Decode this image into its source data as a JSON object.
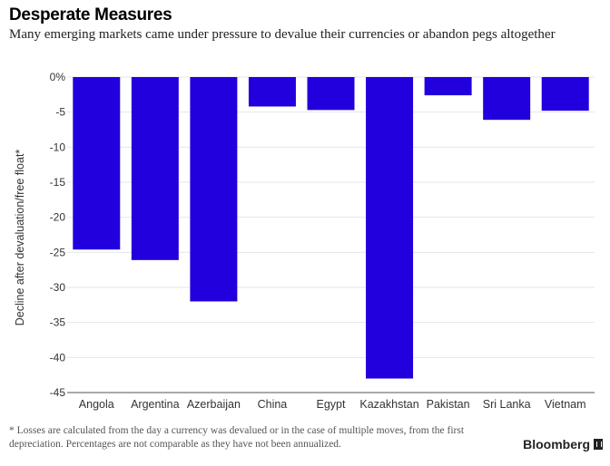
{
  "header": {
    "title": "Desperate Measures",
    "subtitle": "Many emerging markets came under pressure to devalue their currencies or abandon pegs altogether"
  },
  "footnote": "* Losses are calculated from the day a currency was devalued or in the case of multiple moves, from the first depreciation. Percentages are not comparable as they have not been annualized.",
  "brand": {
    "name": "Bloomberg",
    "icon": "bloomberg-logo-icon"
  },
  "colors": {
    "bar": "#2200dd",
    "grid": "#e6e6e6",
    "axis": "#555555"
  },
  "chart_data": {
    "type": "bar",
    "title": "Desperate Measures",
    "subtitle": "Many emerging markets came under pressure to devalue their currencies or abandon pegs altogether",
    "xlabel": "",
    "ylabel": "Decline after devaluation/free float*",
    "categories": [
      "Angola",
      "Argentina",
      "Azerbaijan",
      "China",
      "Egypt",
      "Kazakhstan",
      "Pakistan",
      "Sri Lanka",
      "Vietnam"
    ],
    "values": [
      -24.6,
      -26.1,
      -32,
      -4.2,
      -4.7,
      -43,
      -2.6,
      -6.1,
      -4.8
    ],
    "ylim": [
      -45,
      0
    ],
    "yticks": [
      0,
      -5,
      -10,
      -15,
      -20,
      -25,
      -30,
      -35,
      -40,
      -45
    ],
    "ytick_labels": [
      "0%",
      "-5",
      "-10",
      "-15",
      "-20",
      "-25",
      "-30",
      "-35",
      "-40",
      "-45"
    ],
    "grid": true,
    "legend": "none"
  }
}
